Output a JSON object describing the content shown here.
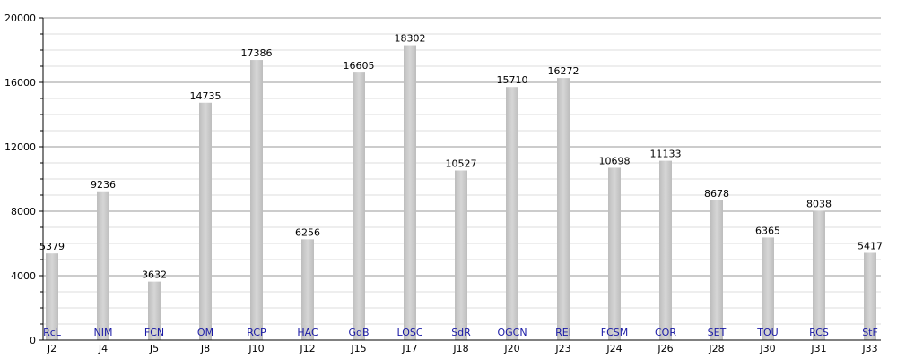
{
  "chart_data": {
    "type": "bar",
    "title": "",
    "xlabel": "",
    "ylabel": "",
    "ylim": [
      0,
      20000
    ],
    "y_ticks": [
      0,
      4000,
      8000,
      12000,
      16000,
      20000
    ],
    "grid": true,
    "legend": "none",
    "colors": {
      "bar": "#c8c8c8",
      "bar_highlight": "#efefef",
      "grid": "#999999",
      "grid_minor": "#dddddd",
      "axis": "#000000",
      "team_label": "#1a1aa6"
    },
    "categories": [
      "J2",
      "J4",
      "J5",
      "J8",
      "J10",
      "J12",
      "J15",
      "J17",
      "J18",
      "J20",
      "J23",
      "J24",
      "J26",
      "J28",
      "J30",
      "J31",
      "J33"
    ],
    "team_labels": [
      "RcL",
      "NIM",
      "FCN",
      "OM",
      "RCP",
      "HAC",
      "GdB",
      "LOSC",
      "SdR",
      "OGCN",
      "REI",
      "FCSM",
      "COR",
      "SET",
      "TOU",
      "RCS",
      "StF"
    ],
    "values": [
      5379,
      9236,
      3632,
      14735,
      17386,
      6256,
      16605,
      18302,
      10527,
      15710,
      16272,
      10698,
      11133,
      8678,
      6365,
      8038,
      5417
    ],
    "value_labels": [
      "5379",
      "9236",
      "3632",
      "14735",
      "17386",
      "6256",
      "16605",
      "18302",
      "10527",
      "15710",
      "16272",
      "10698",
      "11133",
      "8678",
      "6365",
      "8038",
      "5417"
    ]
  }
}
